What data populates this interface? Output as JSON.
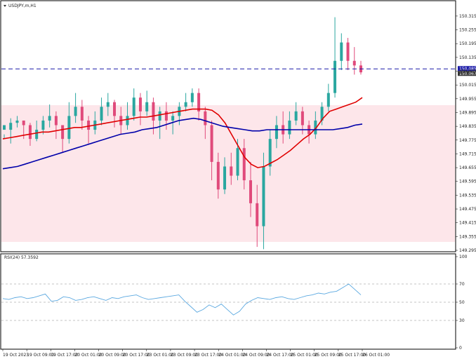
{
  "chart_data": [
    {
      "type": "candlestick",
      "title": "USDJPY,m,H1",
      "ylim": [
        149.295,
        150.33
      ],
      "ticks": [
        "150.315",
        "150.255",
        "150.195",
        "150.135",
        "150.075",
        "150.015",
        "149.955",
        "149.895",
        "149.835",
        "149.775",
        "149.715",
        "149.655",
        "149.595",
        "149.535",
        "149.475",
        "149.415",
        "149.355",
        "149.295"
      ],
      "current_price_line": 150.085,
      "price_labels": [
        "150.085",
        "150.067"
      ],
      "moving_averages": [
        {
          "color": "#e00000",
          "values": [
            149.78,
            149.785,
            149.79,
            149.795,
            149.8,
            149.805,
            149.81,
            149.81,
            149.815,
            149.82,
            149.825,
            149.83,
            149.83,
            149.835,
            149.84,
            149.845,
            149.85,
            149.855,
            149.86,
            149.865,
            149.87,
            149.875,
            149.875,
            149.88,
            149.885,
            149.89,
            149.895,
            149.9,
            149.905,
            149.91,
            149.91,
            149.91,
            149.905,
            149.885,
            149.85,
            149.8,
            149.75,
            149.7,
            149.67,
            149.655,
            149.66,
            149.675,
            149.69,
            149.71,
            149.73,
            149.755,
            149.78,
            149.8,
            149.83,
            149.87,
            149.9,
            149.91,
            149.92,
            149.93,
            149.94,
            149.96
          ]
        },
        {
          "color": "#0000aa",
          "values": [
            149.65,
            149.655,
            149.66,
            149.67,
            149.68,
            149.69,
            149.7,
            149.71,
            149.72,
            149.73,
            149.74,
            149.75,
            149.76,
            149.77,
            149.78,
            149.79,
            149.8,
            149.805,
            149.81,
            149.82,
            149.825,
            149.83,
            149.84,
            149.85,
            149.86,
            149.865,
            149.87,
            149.865,
            149.855,
            149.845,
            149.835,
            149.83,
            149.825,
            149.82,
            149.815,
            149.815,
            149.82,
            149.82,
            149.82,
            149.82,
            149.82,
            149.82,
            149.82,
            149.82,
            149.82,
            149.82,
            149.825,
            149.83,
            149.84,
            149.845
          ]
        }
      ],
      "candles": [
        [
          149.82,
          149.84,
          149.8,
          149.78
        ],
        [
          149.82,
          149.85,
          149.87,
          149.76
        ],
        [
          149.85,
          149.86,
          149.88,
          149.83
        ],
        [
          149.86,
          149.84,
          149.86,
          149.78
        ],
        [
          149.84,
          149.78,
          149.85,
          149.75
        ],
        [
          149.78,
          149.82,
          149.86,
          149.77
        ],
        [
          149.82,
          149.86,
          149.88,
          149.8
        ],
        [
          149.86,
          149.88,
          149.93,
          149.83
        ],
        [
          149.88,
          149.84,
          149.9,
          149.78
        ],
        [
          149.84,
          149.78,
          149.84,
          149.72
        ],
        [
          149.78,
          149.88,
          149.94,
          149.76
        ],
        [
          149.88,
          149.92,
          149.98,
          149.85
        ],
        [
          149.92,
          149.86,
          149.95,
          149.82
        ],
        [
          149.86,
          149.82,
          149.88,
          149.76
        ],
        [
          149.82,
          149.86,
          149.9,
          149.8
        ],
        [
          149.86,
          149.92,
          149.96,
          149.84
        ],
        [
          149.92,
          149.94,
          149.98,
          149.88
        ],
        [
          149.94,
          149.88,
          149.95,
          149.83
        ],
        [
          149.88,
          149.84,
          149.92,
          149.8
        ],
        [
          149.84,
          149.88,
          149.94,
          149.82
        ],
        [
          149.88,
          149.96,
          150.0,
          149.86
        ],
        [
          149.96,
          149.9,
          149.98,
          149.84
        ],
        [
          149.9,
          149.94,
          149.99,
          149.88
        ],
        [
          149.94,
          149.86,
          149.96,
          149.8
        ],
        [
          149.86,
          149.9,
          149.92,
          149.78
        ],
        [
          149.9,
          149.86,
          149.94,
          149.82
        ],
        [
          149.86,
          149.88,
          149.9,
          149.8
        ],
        [
          149.88,
          149.92,
          149.94,
          149.84
        ],
        [
          149.92,
          149.94,
          149.98,
          149.9
        ],
        [
          149.94,
          149.98,
          150.0,
          149.92
        ],
        [
          149.98,
          149.9,
          150.0,
          149.86
        ],
        [
          149.9,
          149.84,
          149.92,
          149.78
        ],
        [
          149.84,
          149.68,
          149.86,
          149.6
        ],
        [
          149.68,
          149.56,
          149.72,
          149.52
        ],
        [
          149.56,
          149.66,
          149.7,
          149.54
        ],
        [
          149.66,
          149.62,
          149.72,
          149.58
        ],
        [
          149.62,
          149.74,
          149.78,
          149.6
        ],
        [
          149.74,
          149.6,
          149.78,
          149.56
        ],
        [
          149.6,
          149.5,
          149.68,
          149.44
        ],
        [
          149.5,
          149.4,
          149.58,
          149.31
        ],
        [
          149.4,
          149.66,
          149.72,
          149.3
        ],
        [
          149.66,
          149.78,
          149.82,
          149.62
        ],
        [
          149.78,
          149.84,
          149.88,
          149.74
        ],
        [
          149.84,
          149.8,
          149.9,
          149.76
        ],
        [
          149.8,
          149.86,
          149.9,
          149.78
        ],
        [
          149.86,
          149.9,
          149.94,
          149.84
        ],
        [
          149.9,
          149.84,
          149.92,
          149.8
        ],
        [
          149.84,
          149.8,
          149.86,
          149.76
        ],
        [
          149.8,
          149.86,
          149.9,
          149.78
        ],
        [
          149.86,
          149.92,
          149.94,
          149.84
        ],
        [
          149.92,
          149.98,
          150.02,
          149.9
        ],
        [
          149.98,
          150.12,
          150.31,
          149.96
        ],
        [
          150.12,
          150.2,
          150.24,
          150.08
        ],
        [
          150.2,
          150.12,
          150.22,
          150.08
        ],
        [
          150.12,
          150.1,
          150.18,
          150.06
        ],
        [
          150.1,
          150.07,
          150.12,
          150.06
        ]
      ]
    },
    {
      "type": "line",
      "label": "RSI(24) 57.3592",
      "ylim": [
        0,
        100
      ],
      "ticks": [
        "100",
        "70",
        "50",
        "30",
        "0"
      ],
      "levels": [
        70,
        50,
        30
      ],
      "values": [
        54,
        53,
        55,
        56,
        54,
        55,
        57,
        59,
        51,
        52,
        56,
        55,
        52,
        53,
        55,
        56,
        54,
        52,
        55,
        54,
        56,
        57,
        58,
        55,
        53,
        54,
        55,
        56,
        57,
        58,
        51,
        45,
        39,
        42,
        47,
        44,
        48,
        42,
        36,
        40,
        48,
        52,
        55,
        54,
        53,
        55,
        56,
        54,
        53,
        55,
        57,
        58,
        60,
        59,
        61,
        62,
        66,
        70,
        64,
        58
      ]
    }
  ],
  "x_ticks": [
    "19 Oct 2023",
    "19 Oct 09:00",
    "19 Oct 17:00",
    "20 Oct 01:00",
    "20 Oct 09:00",
    "20 Oct 17:00",
    "23 Oct 01:00",
    "23 Oct 09:00",
    "23 Oct 17:00",
    "24 Oct 01:00",
    "24 Oct 09:00",
    "24 Oct 17:00",
    "25 Oct 01:00",
    "25 Oct 09:00",
    "25 Oct 17:00",
    "26 Oct 01:00"
  ],
  "colors": {
    "up": "#2aa7a0",
    "down": "#e04a7b",
    "shade": "#fde6ea",
    "rsi": "#5aa8e0",
    "grid": "#888888"
  }
}
